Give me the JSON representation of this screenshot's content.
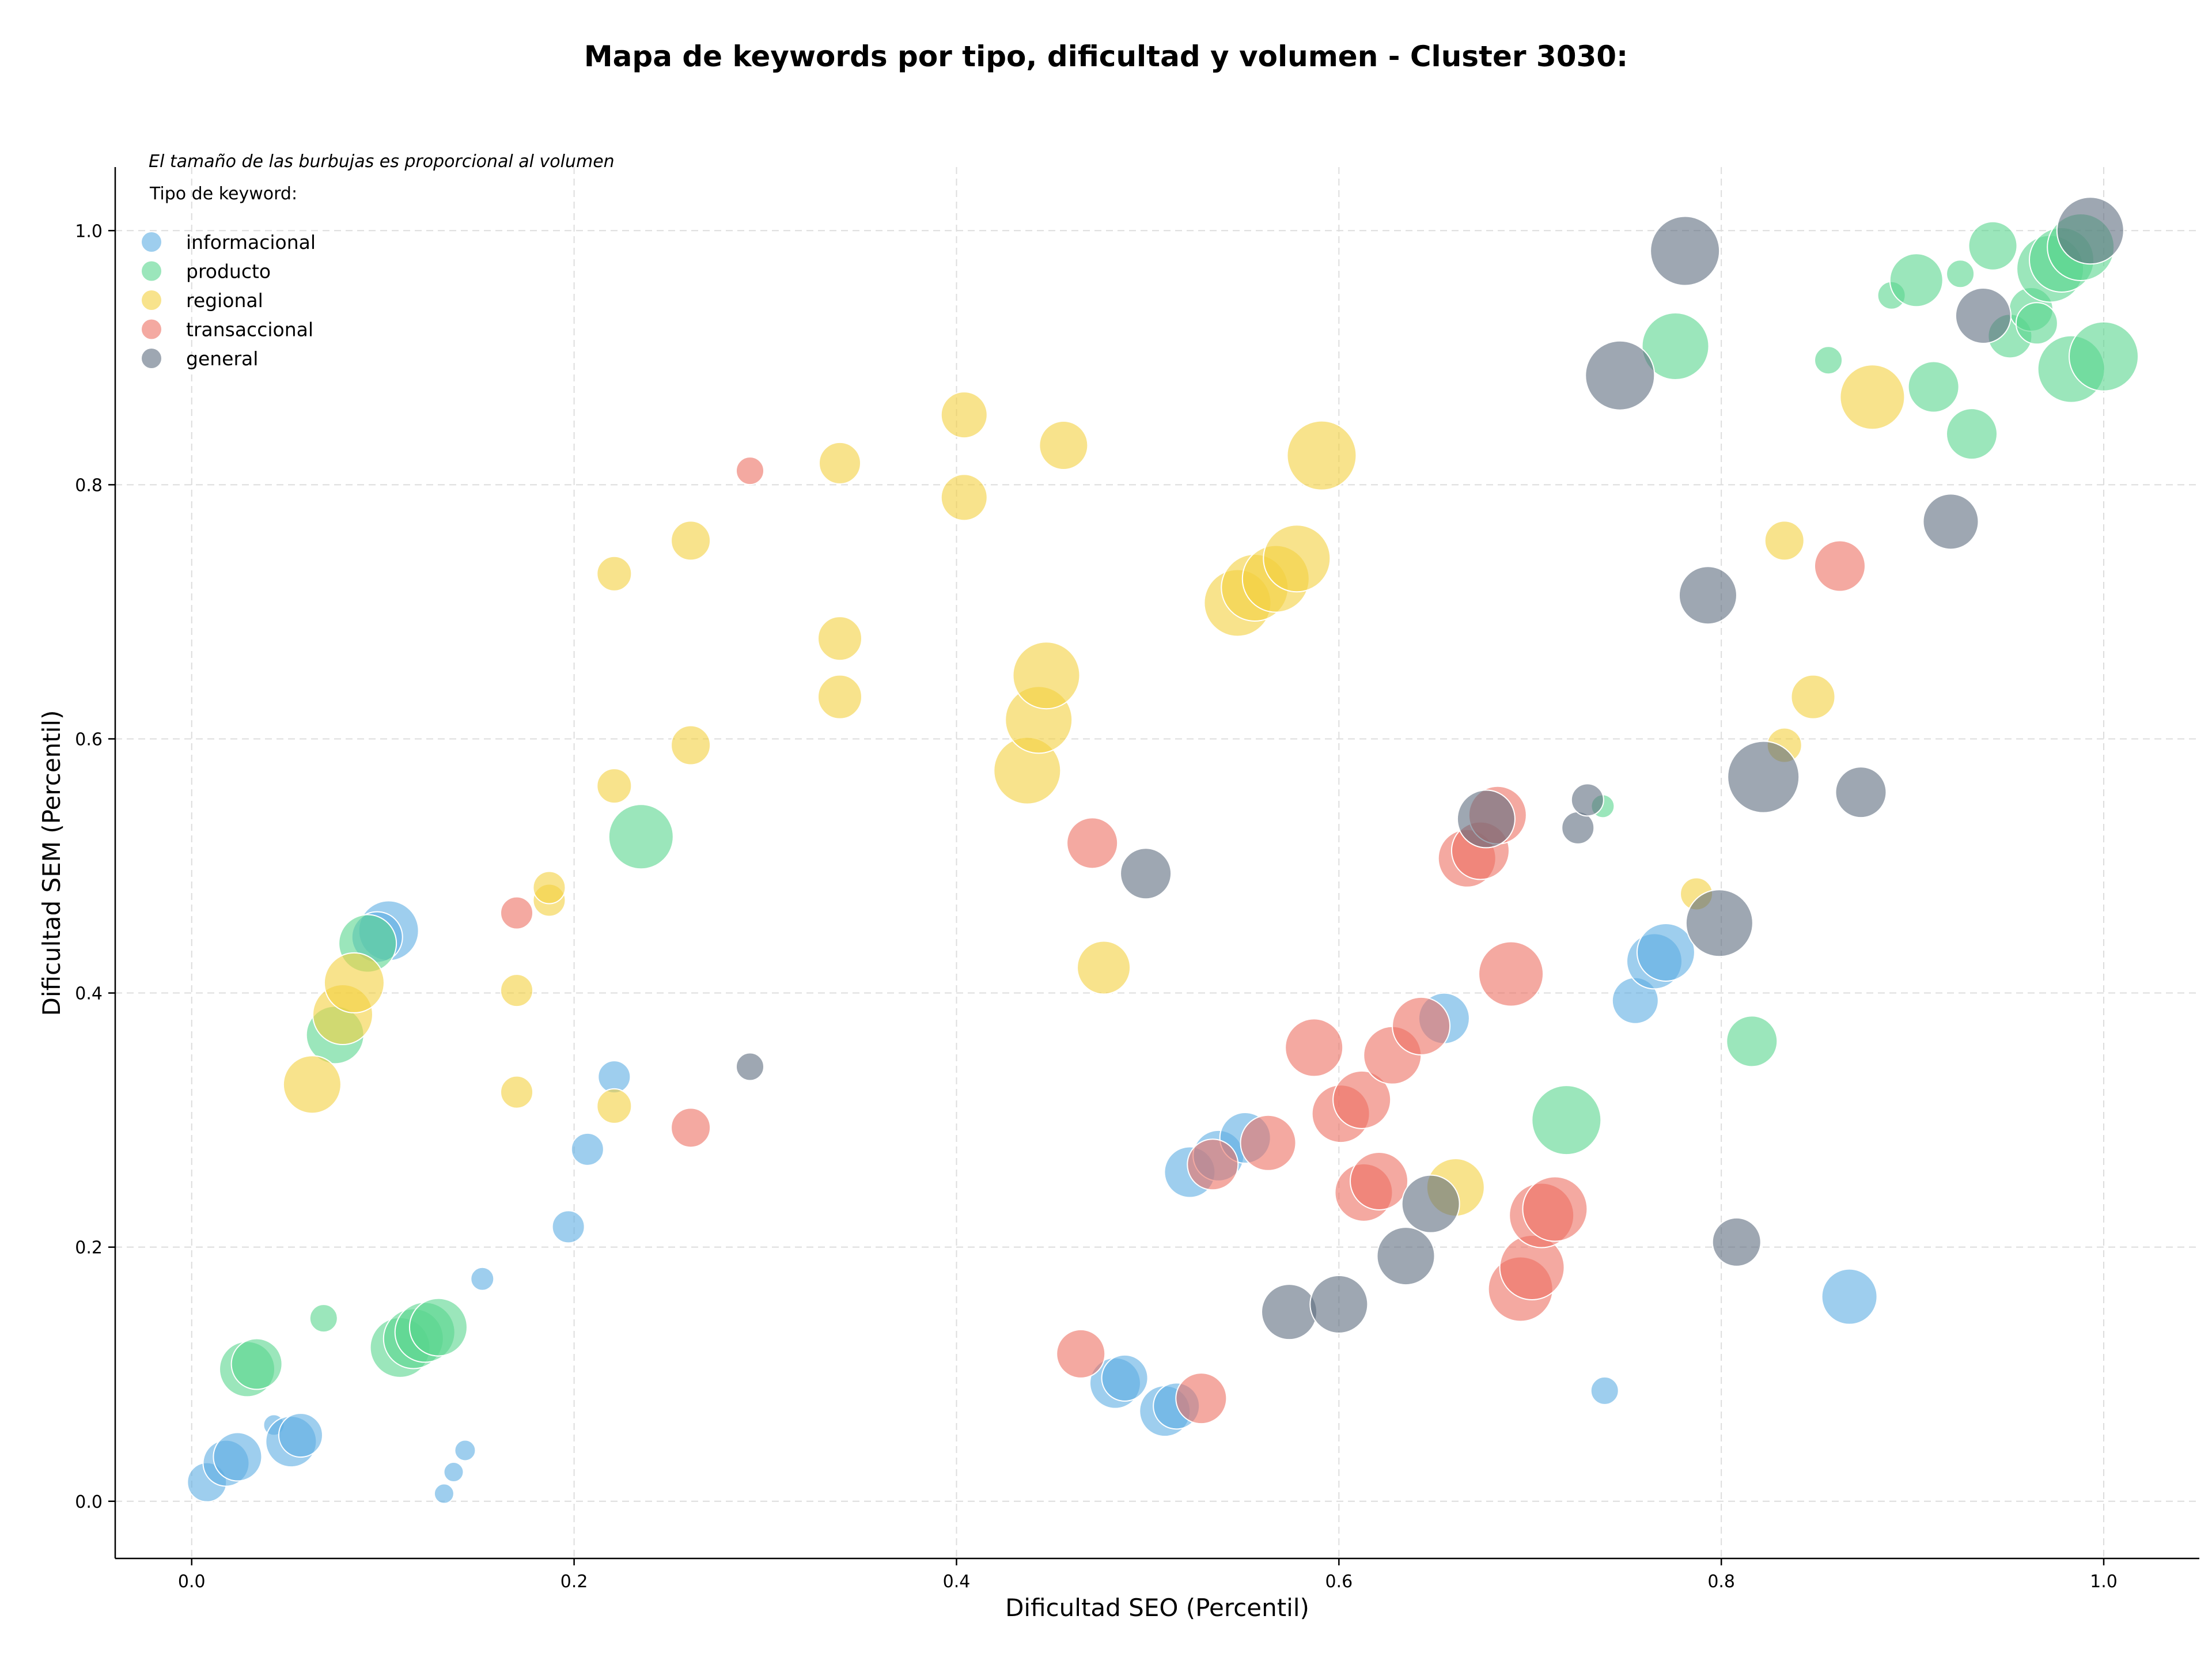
{
  "chart_data": {
    "type": "scatter",
    "title": "Mapa de keywords por tipo, dificultad y volumen - Cluster 3030:",
    "xlabel": "Dificultad SEO (Percentil)",
    "ylabel": "Dificultad SEM (Percentil)",
    "xlim": [
      -0.04,
      1.05
    ],
    "ylim": [
      -0.045,
      1.05
    ],
    "xticks": [
      "0.0",
      "0.2",
      "0.4",
      "0.6",
      "0.8",
      "1.0"
    ],
    "yticks": [
      "0.0",
      "0.2",
      "0.4",
      "0.6",
      "0.8",
      "1.0"
    ],
    "grid": true,
    "note": "El tamaño de las burbujas es proporcional al volumen",
    "legend_title": "Tipo de keyword:",
    "legend_position": "top-left",
    "size_encoding": "volume",
    "series": [
      {
        "name": "informacional",
        "color": "#5dade2",
        "points": [
          {
            "x": 0.008,
            "y": 0.015,
            "volume": 34
          },
          {
            "x": 0.018,
            "y": 0.03,
            "volume": 40
          },
          {
            "x": 0.024,
            "y": 0.035,
            "volume": 42
          },
          {
            "x": 0.043,
            "y": 0.06,
            "volume": 18
          },
          {
            "x": 0.052,
            "y": 0.047,
            "volume": 44
          },
          {
            "x": 0.057,
            "y": 0.052,
            "volume": 38
          },
          {
            "x": 0.132,
            "y": 0.006,
            "volume": 17
          },
          {
            "x": 0.137,
            "y": 0.023,
            "volume": 17
          },
          {
            "x": 0.143,
            "y": 0.04,
            "volume": 18
          },
          {
            "x": 0.152,
            "y": 0.175,
            "volume": 20
          },
          {
            "x": 0.197,
            "y": 0.216,
            "volume": 28
          },
          {
            "x": 0.207,
            "y": 0.277,
            "volume": 28
          },
          {
            "x": 0.221,
            "y": 0.334,
            "volume": 28
          },
          {
            "x": 0.103,
            "y": 0.449,
            "volume": 52
          },
          {
            "x": 0.097,
            "y": 0.444,
            "volume": 44
          },
          {
            "x": 0.483,
            "y": 0.093,
            "volume": 44
          },
          {
            "x": 0.488,
            "y": 0.097,
            "volume": 40
          },
          {
            "x": 0.509,
            "y": 0.071,
            "volume": 44
          },
          {
            "x": 0.515,
            "y": 0.075,
            "volume": 40
          },
          {
            "x": 0.522,
            "y": 0.259,
            "volume": 44
          },
          {
            "x": 0.537,
            "y": 0.272,
            "volume": 44
          },
          {
            "x": 0.551,
            "y": 0.286,
            "volume": 44
          },
          {
            "x": 0.655,
            "y": 0.38,
            "volume": 44
          },
          {
            "x": 0.755,
            "y": 0.394,
            "volume": 40
          },
          {
            "x": 0.765,
            "y": 0.425,
            "volume": 48
          },
          {
            "x": 0.771,
            "y": 0.432,
            "volume": 50
          },
          {
            "x": 0.739,
            "y": 0.087,
            "volume": 24
          },
          {
            "x": 0.867,
            "y": 0.161,
            "volume": 48
          }
        ]
      },
      {
        "name": "producto",
        "color": "#58d68d",
        "points": [
          {
            "x": 0.029,
            "y": 0.104,
            "volume": 48
          },
          {
            "x": 0.034,
            "y": 0.108,
            "volume": 44
          },
          {
            "x": 0.069,
            "y": 0.144,
            "volume": 24
          },
          {
            "x": 0.109,
            "y": 0.121,
            "volume": 52
          },
          {
            "x": 0.116,
            "y": 0.128,
            "volume": 52
          },
          {
            "x": 0.122,
            "y": 0.133,
            "volume": 52
          },
          {
            "x": 0.129,
            "y": 0.137,
            "volume": 50
          },
          {
            "x": 0.075,
            "y": 0.367,
            "volume": 50
          },
          {
            "x": 0.092,
            "y": 0.439,
            "volume": 50
          },
          {
            "x": 0.235,
            "y": 0.523,
            "volume": 56
          },
          {
            "x": 0.719,
            "y": 0.3,
            "volume": 60
          },
          {
            "x": 0.738,
            "y": 0.547,
            "volume": 20
          },
          {
            "x": 0.816,
            "y": 0.362,
            "volume": 44
          },
          {
            "x": 0.776,
            "y": 0.909,
            "volume": 58
          },
          {
            "x": 0.856,
            "y": 0.898,
            "volume": 24
          },
          {
            "x": 0.889,
            "y": 0.949,
            "volume": 24
          },
          {
            "x": 0.902,
            "y": 0.961,
            "volume": 46
          },
          {
            "x": 0.911,
            "y": 0.877,
            "volume": 44
          },
          {
            "x": 0.925,
            "y": 0.966,
            "volume": 24
          },
          {
            "x": 0.931,
            "y": 0.84,
            "volume": 44
          },
          {
            "x": 0.942,
            "y": 0.988,
            "volume": 42
          },
          {
            "x": 0.951,
            "y": 0.917,
            "volume": 38
          },
          {
            "x": 0.962,
            "y": 0.938,
            "volume": 38
          },
          {
            "x": 0.965,
            "y": 0.927,
            "volume": 36
          },
          {
            "x": 0.972,
            "y": 0.97,
            "volume": 58
          },
          {
            "x": 0.978,
            "y": 0.977,
            "volume": 56
          },
          {
            "x": 0.983,
            "y": 0.891,
            "volume": 58
          },
          {
            "x": 0.988,
            "y": 0.987,
            "volume": 58
          },
          {
            "x": 1.0,
            "y": 0.901,
            "volume": 60
          }
        ]
      },
      {
        "name": "regional",
        "color": "#f4d03f",
        "points": [
          {
            "x": 0.063,
            "y": 0.328,
            "volume": 50
          },
          {
            "x": 0.079,
            "y": 0.383,
            "volume": 52
          },
          {
            "x": 0.085,
            "y": 0.408,
            "volume": 52
          },
          {
            "x": 0.17,
            "y": 0.322,
            "volume": 28
          },
          {
            "x": 0.17,
            "y": 0.402,
            "volume": 28
          },
          {
            "x": 0.187,
            "y": 0.473,
            "volume": 28
          },
          {
            "x": 0.187,
            "y": 0.483,
            "volume": 28
          },
          {
            "x": 0.221,
            "y": 0.311,
            "volume": 30
          },
          {
            "x": 0.221,
            "y": 0.563,
            "volume": 30
          },
          {
            "x": 0.221,
            "y": 0.73,
            "volume": 30
          },
          {
            "x": 0.261,
            "y": 0.595,
            "volume": 34
          },
          {
            "x": 0.261,
            "y": 0.756,
            "volume": 34
          },
          {
            "x": 0.339,
            "y": 0.633,
            "volume": 38
          },
          {
            "x": 0.339,
            "y": 0.679,
            "volume": 38
          },
          {
            "x": 0.339,
            "y": 0.817,
            "volume": 36
          },
          {
            "x": 0.404,
            "y": 0.79,
            "volume": 40
          },
          {
            "x": 0.404,
            "y": 0.855,
            "volume": 40
          },
          {
            "x": 0.456,
            "y": 0.831,
            "volume": 42
          },
          {
            "x": 0.437,
            "y": 0.575,
            "volume": 58
          },
          {
            "x": 0.443,
            "y": 0.615,
            "volume": 58
          },
          {
            "x": 0.447,
            "y": 0.65,
            "volume": 58
          },
          {
            "x": 0.477,
            "y": 0.42,
            "volume": 46
          },
          {
            "x": 0.547,
            "y": 0.707,
            "volume": 58
          },
          {
            "x": 0.556,
            "y": 0.719,
            "volume": 58
          },
          {
            "x": 0.567,
            "y": 0.726,
            "volume": 58
          },
          {
            "x": 0.578,
            "y": 0.742,
            "volume": 58
          },
          {
            "x": 0.591,
            "y": 0.823,
            "volume": 60
          },
          {
            "x": 0.661,
            "y": 0.247,
            "volume": 50
          },
          {
            "x": 0.787,
            "y": 0.478,
            "volume": 28
          },
          {
            "x": 0.833,
            "y": 0.595,
            "volume": 30
          },
          {
            "x": 0.833,
            "y": 0.756,
            "volume": 34
          },
          {
            "x": 0.848,
            "y": 0.633,
            "volume": 38
          },
          {
            "x": 0.879,
            "y": 0.869,
            "volume": 56
          }
        ]
      },
      {
        "name": "transaccional",
        "color": "#ec7063",
        "points": [
          {
            "x": 0.17,
            "y": 0.463,
            "volume": 28
          },
          {
            "x": 0.261,
            "y": 0.294,
            "volume": 34
          },
          {
            "x": 0.292,
            "y": 0.811,
            "volume": 24
          },
          {
            "x": 0.465,
            "y": 0.116,
            "volume": 42
          },
          {
            "x": 0.471,
            "y": 0.518,
            "volume": 44
          },
          {
            "x": 0.528,
            "y": 0.081,
            "volume": 44
          },
          {
            "x": 0.534,
            "y": 0.265,
            "volume": 44
          },
          {
            "x": 0.563,
            "y": 0.282,
            "volume": 48
          },
          {
            "x": 0.587,
            "y": 0.357,
            "volume": 50
          },
          {
            "x": 0.601,
            "y": 0.305,
            "volume": 50
          },
          {
            "x": 0.612,
            "y": 0.316,
            "volume": 50
          },
          {
            "x": 0.613,
            "y": 0.243,
            "volume": 50
          },
          {
            "x": 0.621,
            "y": 0.252,
            "volume": 50
          },
          {
            "x": 0.628,
            "y": 0.351,
            "volume": 50
          },
          {
            "x": 0.643,
            "y": 0.374,
            "volume": 50
          },
          {
            "x": 0.667,
            "y": 0.506,
            "volume": 50
          },
          {
            "x": 0.674,
            "y": 0.512,
            "volume": 50
          },
          {
            "x": 0.683,
            "y": 0.54,
            "volume": 50
          },
          {
            "x": 0.69,
            "y": 0.415,
            "volume": 56
          },
          {
            "x": 0.695,
            "y": 0.167,
            "volume": 56
          },
          {
            "x": 0.701,
            "y": 0.184,
            "volume": 56
          },
          {
            "x": 0.706,
            "y": 0.225,
            "volume": 56
          },
          {
            "x": 0.713,
            "y": 0.23,
            "volume": 56
          },
          {
            "x": 0.862,
            "y": 0.736,
            "volume": 44
          }
        ]
      },
      {
        "name": "general",
        "color": "#5d6d7e",
        "points": [
          {
            "x": 0.292,
            "y": 0.342,
            "volume": 24
          },
          {
            "x": 0.499,
            "y": 0.494,
            "volume": 44
          },
          {
            "x": 0.574,
            "y": 0.149,
            "volume": 48
          },
          {
            "x": 0.6,
            "y": 0.155,
            "volume": 50
          },
          {
            "x": 0.635,
            "y": 0.193,
            "volume": 50
          },
          {
            "x": 0.648,
            "y": 0.234,
            "volume": 50
          },
          {
            "x": 0.677,
            "y": 0.537,
            "volume": 50
          },
          {
            "x": 0.725,
            "y": 0.53,
            "volume": 28
          },
          {
            "x": 0.73,
            "y": 0.552,
            "volume": 28
          },
          {
            "x": 0.747,
            "y": 0.886,
            "volume": 60
          },
          {
            "x": 0.781,
            "y": 0.984,
            "volume": 60
          },
          {
            "x": 0.793,
            "y": 0.713,
            "volume": 50
          },
          {
            "x": 0.799,
            "y": 0.455,
            "volume": 58
          },
          {
            "x": 0.808,
            "y": 0.204,
            "volume": 42
          },
          {
            "x": 0.822,
            "y": 0.57,
            "volume": 62
          },
          {
            "x": 0.873,
            "y": 0.558,
            "volume": 44
          },
          {
            "x": 0.92,
            "y": 0.771,
            "volume": 48
          },
          {
            "x": 0.937,
            "y": 0.933,
            "volume": 48
          },
          {
            "x": 0.993,
            "y": 1.0,
            "volume": 58
          }
        ]
      }
    ]
  }
}
